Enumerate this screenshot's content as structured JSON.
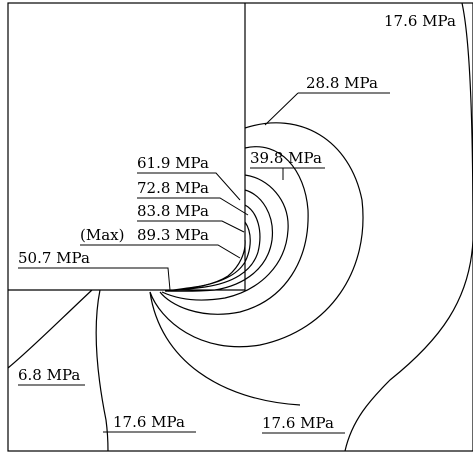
{
  "labels": {
    "c_17_6_top": "17.6 MPa",
    "c_28_8": "28.8 MPa",
    "c_39_8": "39.8 MPa",
    "c_61_9": "61.9 MPa",
    "c_72_8": "72.8 MPa",
    "c_83_8": "83.8 MPa",
    "max_tag": "(Max)",
    "c_89_3": "89.3 MPa",
    "c_50_7": "50.7 MPa",
    "c_6_8": "6.8 MPa",
    "c_17_6_bottom_left": "17.6 MPa",
    "c_17_6_bottom_right": "17.6 MPa"
  }
}
